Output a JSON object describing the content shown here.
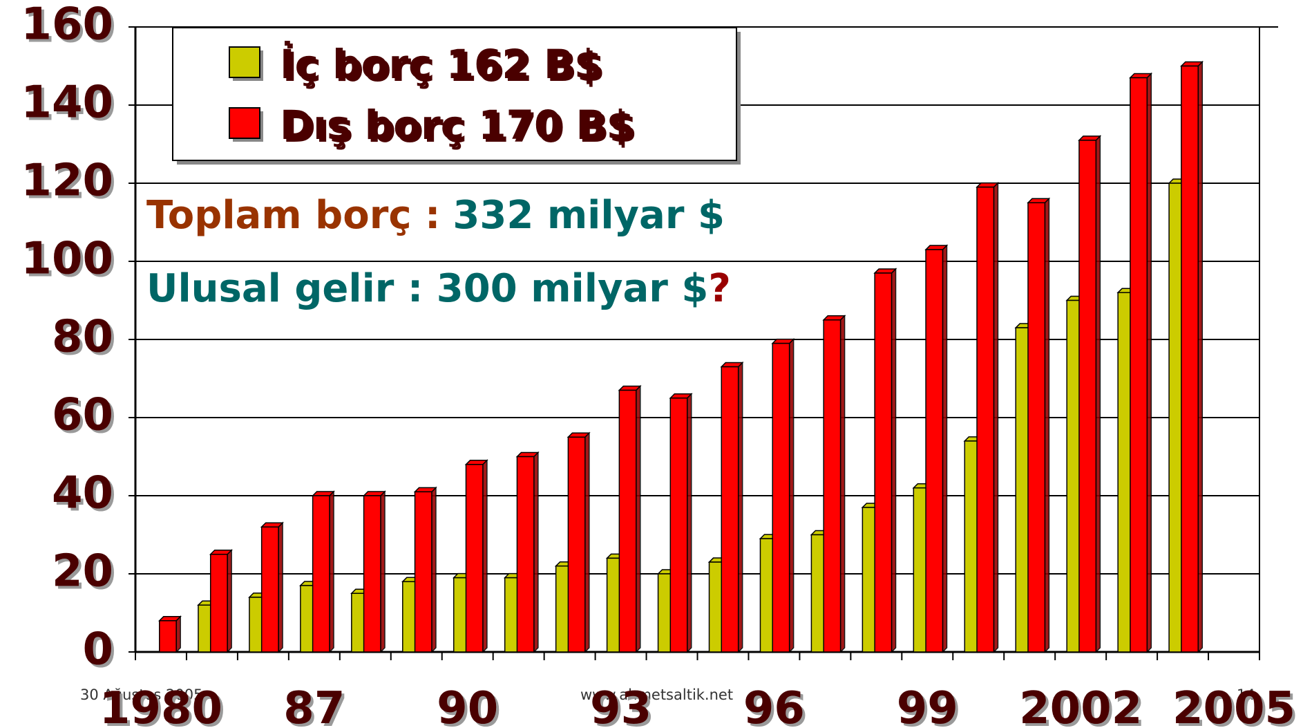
{
  "chart_data": {
    "type": "bar",
    "categories": [
      "1980",
      null,
      null,
      "87",
      null,
      null,
      "90",
      null,
      null,
      "93",
      null,
      null,
      "96",
      null,
      null,
      "99",
      null,
      null,
      "2002",
      null,
      null,
      "2005"
    ],
    "series": [
      {
        "name": "İç borç 162 B$",
        "color": "#cccc00",
        "values": [
          null,
          12,
          14,
          17,
          15,
          18,
          19,
          19,
          22,
          24,
          20,
          23,
          29,
          30,
          37,
          42,
          54,
          83,
          90,
          92,
          120,
          null
        ]
      },
      {
        "name": "Dış borç 170 B$",
        "color": "#ff0000",
        "values": [
          8,
          25,
          32,
          40,
          40,
          41,
          48,
          50,
          55,
          67,
          65,
          73,
          79,
          85,
          97,
          103,
          119,
          115,
          131,
          147,
          150,
          null
        ]
      }
    ],
    "ylim": [
      0,
      160
    ],
    "yticks": [
      0,
      20,
      40,
      60,
      80,
      100,
      120,
      140,
      160
    ],
    "grid": true,
    "legend": "top-left",
    "annotations": [
      "Toplam borç :",
      "332 milyar $",
      "Ulusal gelir : 300 milyar $",
      "?"
    ]
  },
  "footer": {
    "date": "30 Ağustos 2005",
    "site": "www.ahmetsaltik.net",
    "page": "14"
  }
}
